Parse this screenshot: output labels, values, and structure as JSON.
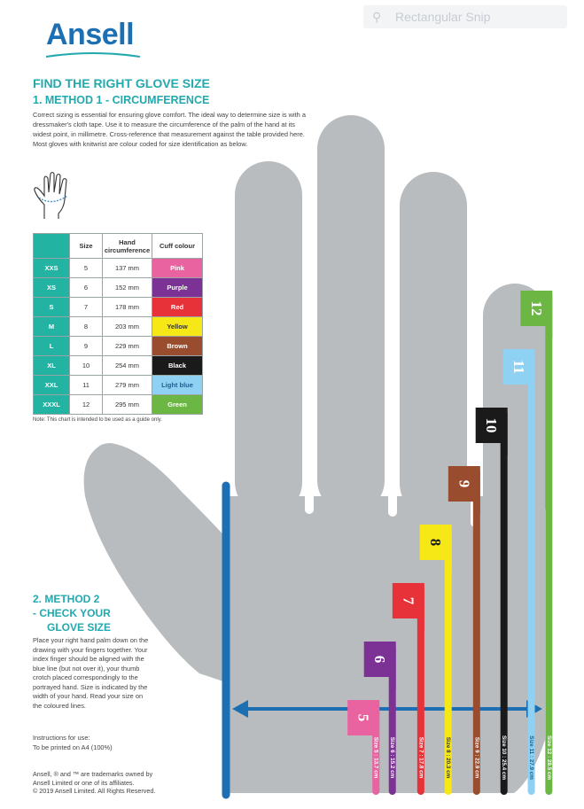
{
  "brand": {
    "name": "Ansell",
    "color": "#1d6fb3"
  },
  "viewer_toolbar": {
    "icon": "search-icon",
    "text": "Rectangular Snip"
  },
  "heading": "FIND THE RIGHT GLOVE SIZE",
  "method1": {
    "title": "1. METHOD 1 - CIRCUMFERENCE",
    "text": "Correct sizing is essential for ensuring glove comfort. The ideal way to determine size is with a dressmaker's cloth tape. Use it to measure the circumference of the palm of the hand at its widest point, in millimetre. Cross-reference that measurement against the table provided here. Most gloves with knitwrist are colour coded for size identification as below."
  },
  "table": {
    "headers": [
      "",
      "Size",
      "Hand circumference",
      "Cuff colour"
    ],
    "rows": [
      {
        "code": "XXS",
        "size": "5",
        "circ": "137 mm",
        "cuff": "Pink",
        "color": "#e8639f",
        "text_color": "#ffffff"
      },
      {
        "code": "XS",
        "size": "6",
        "circ": "152 mm",
        "cuff": "Purple",
        "color": "#7b3294",
        "text_color": "#ffffff"
      },
      {
        "code": "S",
        "size": "7",
        "circ": "178 mm",
        "cuff": "Red",
        "color": "#e8323a",
        "text_color": "#ffffff"
      },
      {
        "code": "M",
        "size": "8",
        "circ": "203 mm",
        "cuff": "Yellow",
        "color": "#f6e717",
        "text_color": "#333333"
      },
      {
        "code": "L",
        "size": "9",
        "circ": "229 mm",
        "cuff": "Brown",
        "color": "#9a4d2e",
        "text_color": "#ffffff"
      },
      {
        "code": "XL",
        "size": "10",
        "circ": "254 mm",
        "cuff": "Black",
        "color": "#1a1a1a",
        "text_color": "#ffffff"
      },
      {
        "code": "XXL",
        "size": "11",
        "circ": "279 mm",
        "cuff": "Light blue",
        "color": "#8fd1f2",
        "text_color": "#1d5f8e"
      },
      {
        "code": "XXXL",
        "size": "12",
        "circ": "295 mm",
        "cuff": "Green",
        "color": "#6cb644",
        "text_color": "#ffffff"
      }
    ],
    "note": "Note: This chart is intended to be used as a guide only."
  },
  "method2": {
    "title_lines": [
      "2. METHOD 2",
      "- CHECK YOUR",
      "GLOVE SIZE"
    ],
    "text": "Place your right hand palm down on the drawing with your fingers together. Your index finger should be aligned with the blue line (but not over it), your thumb crotch placed correspondingly to the portrayed hand. Size is indicated by the width of your hand. Read your size on the coloured lines."
  },
  "instructions": [
    "Instructions for use:",
    "To be printed on A4 (100%)"
  ],
  "trademark": [
    "Ansell, ® and ™ are trademarks owned by",
    "Ansell Limited or one of its affiliates.",
    "© 2019 Ansell Limited. All Rights Reserved."
  ],
  "gauge": {
    "hand_color": "#b8bcbe",
    "guide_color": "#1d6fb3",
    "sizes": [
      {
        "num": "5",
        "label": "Size 5 : 13.7 cm",
        "color": "#e8639f",
        "label_color": "#ffffff",
        "width_cm": 13.7
      },
      {
        "num": "6",
        "label": "Size 6 : 15.2 cm",
        "color": "#7b3294",
        "label_color": "#ffffff",
        "width_cm": 15.2
      },
      {
        "num": "7",
        "label": "Size 7 : 17.8 cm",
        "color": "#e8323a",
        "label_color": "#ffffff",
        "width_cm": 17.8
      },
      {
        "num": "8",
        "label": "Size 8 : 20.3 cm",
        "color": "#f6e717",
        "label_color": "#333333",
        "width_cm": 20.3
      },
      {
        "num": "9",
        "label": "Size 9 : 22.9 cm",
        "color": "#9a4d2e",
        "label_color": "#ffffff",
        "width_cm": 22.9
      },
      {
        "num": "10",
        "label": "Size 10 : 25.4 cm",
        "color": "#1a1a1a",
        "label_color": "#ffffff",
        "width_cm": 25.4
      },
      {
        "num": "11",
        "label": "Size 11 : 27.9 cm",
        "color": "#8fd1f2",
        "label_color": "#1d5f8e",
        "width_cm": 27.9
      },
      {
        "num": "12",
        "label": "Size 12 : 29.5 cm",
        "color": "#6cb644",
        "label_color": "#ffffff",
        "width_cm": 29.5
      }
    ]
  }
}
